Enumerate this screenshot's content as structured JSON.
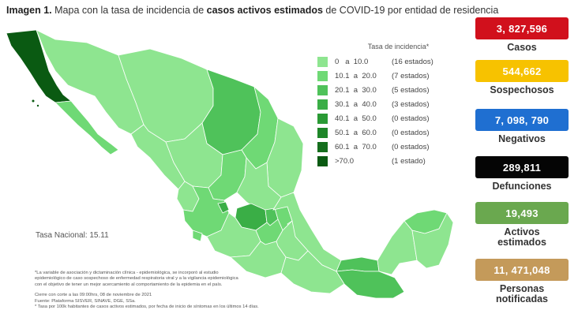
{
  "title": {
    "prefix": "Imagen 1.",
    "part1": " Mapa con la tasa de incidencia de ",
    "bold": "casos activos estimados",
    "part2": " de COVID-19 por entidad de residencia"
  },
  "legend": {
    "title": "Tasa de incidencia*",
    "items": [
      {
        "range": "0   a  10.0",
        "count": "(16 estados)",
        "color": "#8ee590"
      },
      {
        "range": "10.1  a  20.0",
        "count": "(7 estados)",
        "color": "#6fd975"
      },
      {
        "range": "20.1  a  30.0",
        "count": "(5 estados)",
        "color": "#4fc25a"
      },
      {
        "range": "30.1  a  40.0",
        "count": "(3 estados)",
        "color": "#3aae46"
      },
      {
        "range": "40.1  a  50.0",
        "count": "(0 estados)",
        "color": "#2a9a35"
      },
      {
        "range": "50.1  a  60.0",
        "count": "(0 estados)",
        "color": "#1e8628"
      },
      {
        "range": "60.1  a  70.0",
        "count": "(0 estados)",
        "color": "#156e1d"
      },
      {
        "range": ">70.0",
        "count": "(1 estado)",
        "color": "#0a5a12"
      }
    ]
  },
  "tasa_nacional": "Tasa Nacional: 15.11",
  "notes": {
    "line1": "*La variable de asociación y dictaminación clínica - epidemiológica, se incorporó al estudio",
    "line2": "epidemiológico de caso sospechoso de enfermedad respiratoria viral y a la vigilancia epidemiológica",
    "line3": "con el objetivo de tener un mejor acercamiento al comportamiento de la epidemia en el país.",
    "line4": "Cierre con corte a las 09:00hrs, 08 de noviembre de 2021",
    "line5": "Fuente: Plataforma SISVER, SINAVE, DGE, SSa.",
    "line6": "* Tasa por 100k habitantes de casos activos estimados, por fecha de inicio de síntomas en los últimos 14 días."
  },
  "stats": [
    {
      "value": "3, 827,596",
      "label": "Casos",
      "color": "#d1101c"
    },
    {
      "value": "544,662",
      "label": "Sospechosos",
      "color": "#f7c200"
    },
    {
      "value": "7, 098, 790",
      "label": "Negativos",
      "color": "#1f6fd1"
    },
    {
      "value": "289,811",
      "label": "Defunciones",
      "color": "#050505"
    },
    {
      "value": "19,493",
      "label": "Activos estimados",
      "color": "#6aa84f"
    },
    {
      "value": "11, 471,048",
      "label": "Personas notificadas",
      "color": "#c49a5a"
    }
  ]
}
